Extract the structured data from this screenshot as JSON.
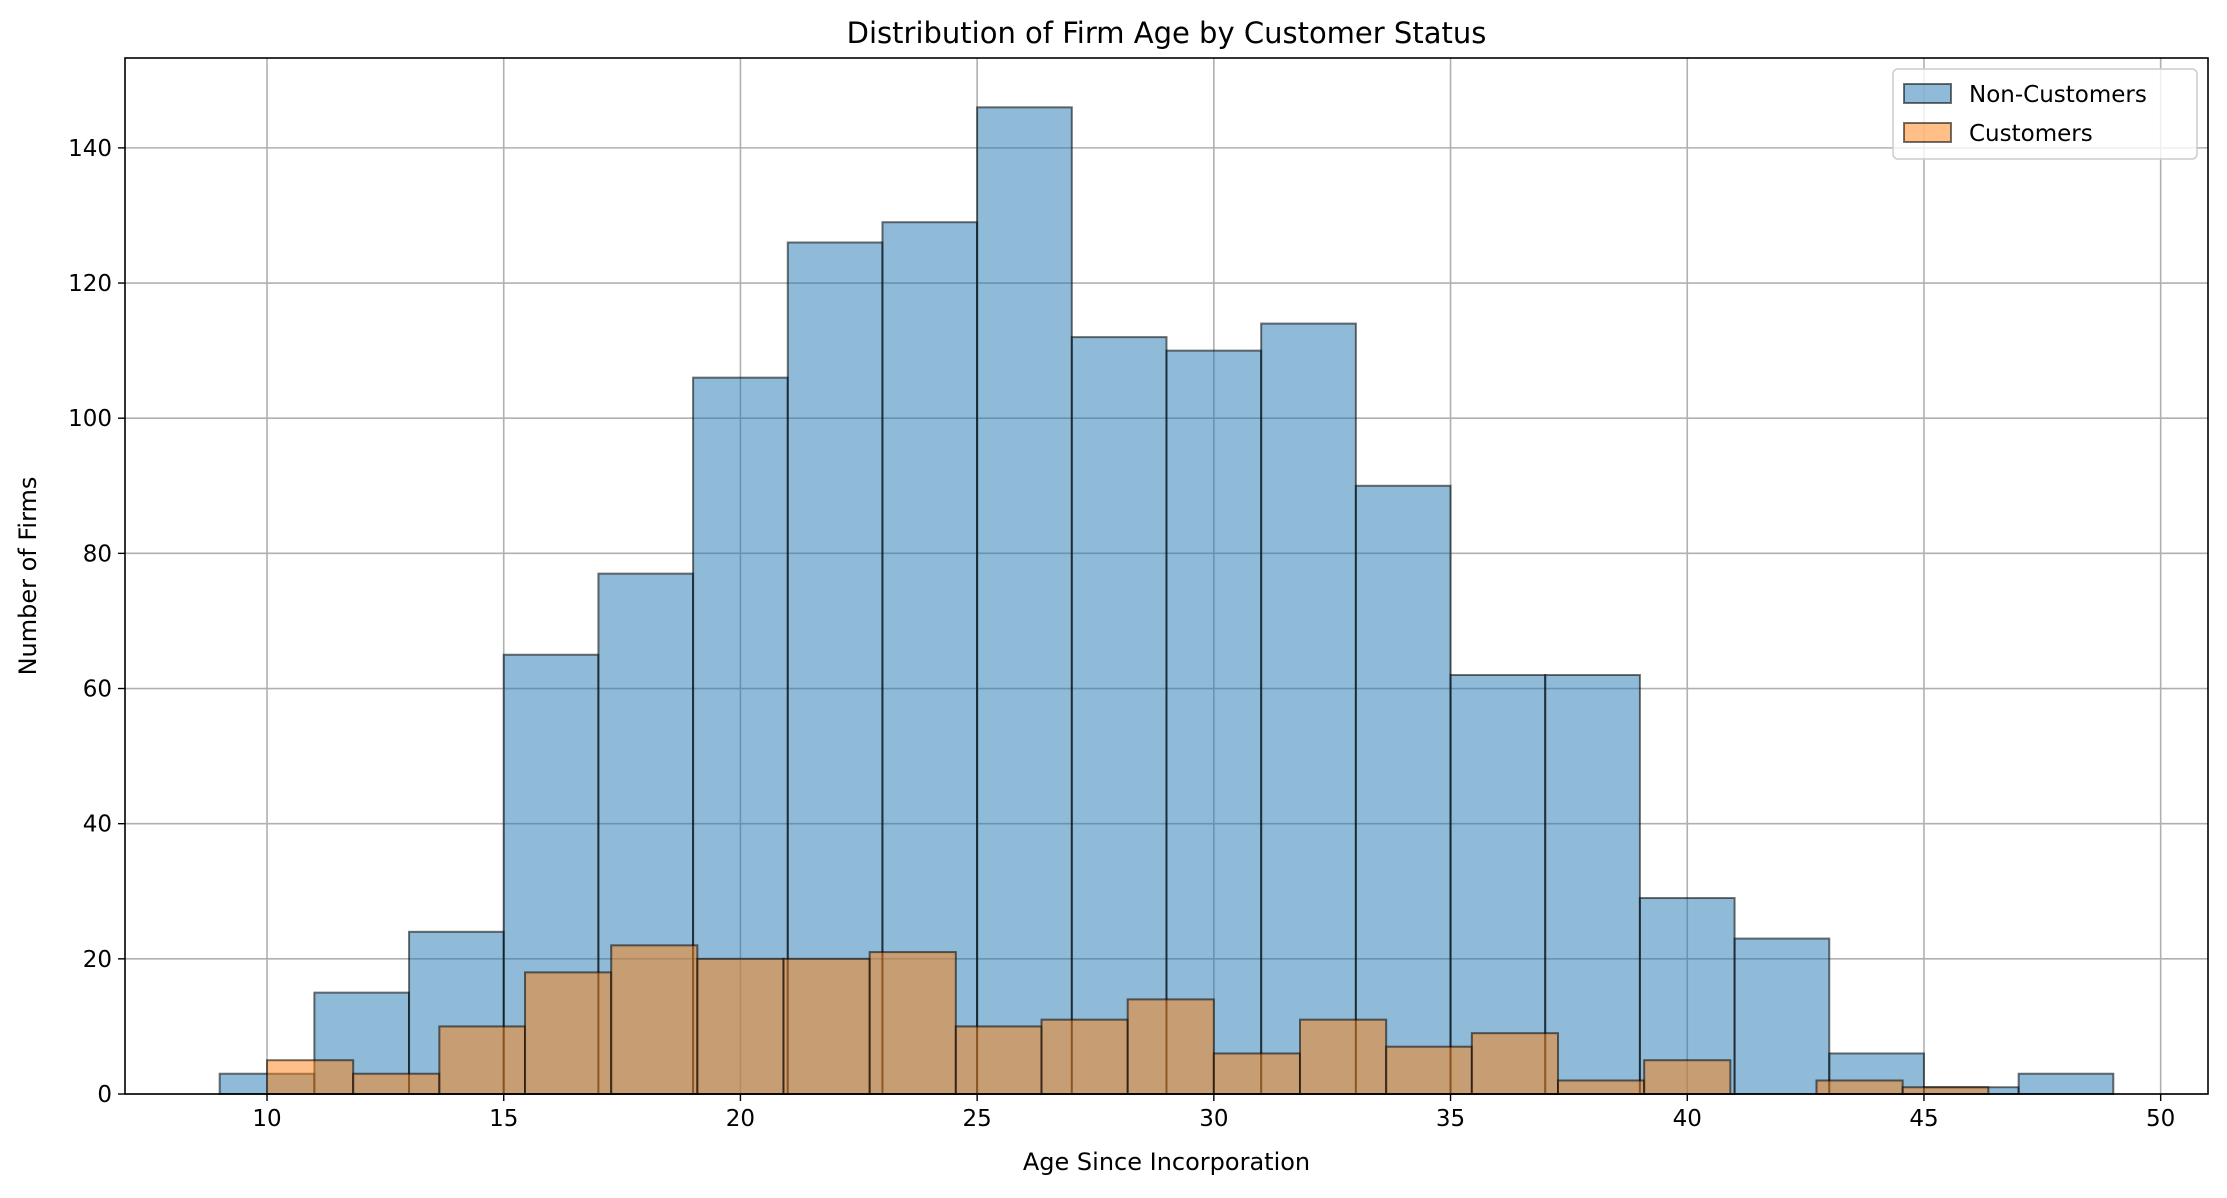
{
  "chart_data": {
    "type": "histogram",
    "title": "Distribution of Firm Age by Customer Status",
    "xlabel": "Age Since Incorporation",
    "ylabel": "Number of Firms",
    "xlim": [
      7,
      51
    ],
    "ylim": [
      0,
      153.3
    ],
    "x_ticks": [
      10,
      15,
      20,
      25,
      30,
      35,
      40,
      45,
      50
    ],
    "y_ticks": [
      0,
      20,
      40,
      60,
      80,
      100,
      120,
      140
    ],
    "grid": true,
    "legend_position": "top-right",
    "series": [
      {
        "name": "Non-Customers",
        "color": "#1f77b4",
        "bin_edges": [
          9,
          11,
          13,
          15,
          17,
          19,
          21,
          23,
          25,
          27,
          29,
          31,
          33,
          35,
          37,
          39,
          41,
          43,
          45,
          47,
          49
        ],
        "counts": [
          3,
          15,
          24,
          65,
          77,
          106,
          126,
          129,
          146,
          112,
          110,
          114,
          90,
          62,
          62,
          29,
          23,
          6,
          1,
          3
        ]
      },
      {
        "name": "Customers",
        "color": "#ff7f0e",
        "bin_edges": [
          10,
          11.82,
          13.64,
          15.45,
          17.27,
          19.09,
          20.91,
          22.73,
          24.55,
          26.36,
          28.18,
          30,
          31.82,
          33.64,
          35.45,
          37.27,
          39.09,
          40.91,
          42.73,
          44.55,
          46.36
        ],
        "counts": [
          5,
          3,
          10,
          18,
          22,
          20,
          20,
          21,
          10,
          11,
          14,
          6,
          11,
          7,
          9,
          2,
          5,
          0,
          2,
          1
        ]
      }
    ]
  }
}
